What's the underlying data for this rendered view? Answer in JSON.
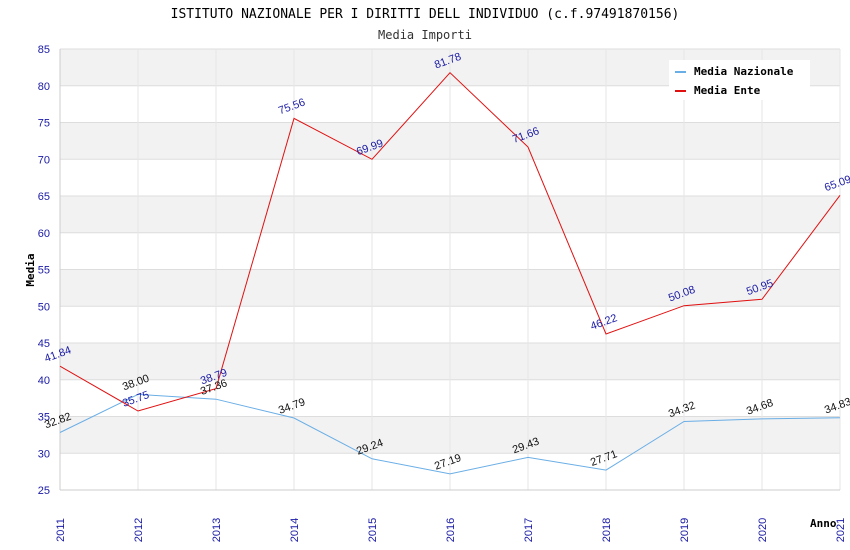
{
  "chart_data": {
    "type": "line",
    "title": "ISTITUTO NAZIONALE PER I DIRITTI DELL INDIVIDUO (c.f.97491870156)",
    "subtitle": "Media Importi",
    "xlabel": "Anno",
    "ylabel": "Media",
    "ylim": [
      25,
      85
    ],
    "yticks": [
      25,
      30,
      35,
      40,
      45,
      50,
      55,
      60,
      65,
      70,
      75,
      80,
      85
    ],
    "x": [
      "2011",
      "2012",
      "2013",
      "2014",
      "2015",
      "2016",
      "2017",
      "2018",
      "2019",
      "2020",
      "2021"
    ],
    "series": [
      {
        "name": "Media Nazionale",
        "color": "#6aaee6",
        "values": [
          32.82,
          38.0,
          37.36,
          34.79,
          29.24,
          27.19,
          29.43,
          27.71,
          34.32,
          34.68,
          34.83
        ],
        "labels": [
          "32.82",
          "38.00",
          "37.36",
          "34.79",
          "29.24",
          "27.19",
          "29.43",
          "27.71",
          "34.32",
          "34.68",
          "34.83"
        ]
      },
      {
        "name": "Media Ente",
        "color": "#e01010",
        "values": [
          41.84,
          35.75,
          38.79,
          75.56,
          69.99,
          81.78,
          71.66,
          46.22,
          50.08,
          50.95,
          65.09
        ],
        "labels": [
          "41.84",
          "35.75",
          "38.79",
          "75.56",
          "69.99",
          "81.78",
          "71.66",
          "46.22",
          "50.08",
          "50.95",
          "65.09"
        ]
      }
    ],
    "grid": true,
    "band_color": "#f2f2f2",
    "legend_position": "top-right"
  }
}
